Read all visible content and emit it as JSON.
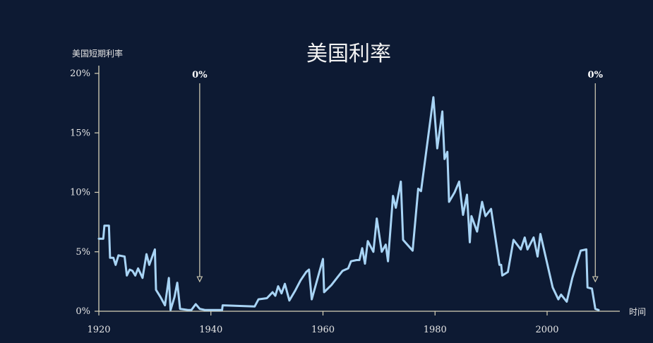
{
  "chart_data": {
    "type": "line",
    "title": "美国利率",
    "ylabel": "美国短期利率",
    "xlabel": "时间",
    "xlim": [
      1920,
      2010
    ],
    "ylim": [
      0,
      20
    ],
    "x_ticks": [
      1920,
      1940,
      1960,
      1980,
      2000
    ],
    "y_ticks": [
      {
        "value": 0,
        "label": "0%"
      },
      {
        "value": 5,
        "label": "5%"
      },
      {
        "value": 10,
        "label": "10%"
      },
      {
        "value": 15,
        "label": "15%"
      },
      {
        "value": 20,
        "label": "20%"
      }
    ],
    "grid": false,
    "annotations": [
      {
        "x": 1938,
        "label": "0%"
      },
      {
        "x": 2008.6,
        "label": "0%"
      }
    ],
    "series": [
      {
        "color": "#a8d4f5",
        "points": [
          [
            1920,
            6.1
          ],
          [
            1920.8,
            6.1
          ],
          [
            1921,
            7.2
          ],
          [
            1921.8,
            7.2
          ],
          [
            1922,
            4.5
          ],
          [
            1922.6,
            4.5
          ],
          [
            1923,
            3.9
          ],
          [
            1923.5,
            4.7
          ],
          [
            1924.6,
            4.6
          ],
          [
            1925,
            3.0
          ],
          [
            1925.5,
            3.5
          ],
          [
            1926,
            3.4
          ],
          [
            1926.5,
            3.0
          ],
          [
            1927,
            3.6
          ],
          [
            1927.8,
            2.8
          ],
          [
            1928.5,
            4.8
          ],
          [
            1929,
            3.9
          ],
          [
            1930,
            5.2
          ],
          [
            1930.2,
            1.8
          ],
          [
            1931,
            1.2
          ],
          [
            1931.8,
            0.5
          ],
          [
            1932.5,
            2.8
          ],
          [
            1932.8,
            0.1
          ],
          [
            1933.5,
            1.2
          ],
          [
            1934,
            2.4
          ],
          [
            1934.5,
            0.2
          ],
          [
            1936,
            0.1
          ],
          [
            1936.5,
            0.1
          ],
          [
            1937.3,
            0.6
          ],
          [
            1938,
            0.2
          ],
          [
            1939,
            0.1
          ],
          [
            1942,
            0.1
          ],
          [
            1942.1,
            0.5
          ],
          [
            1947.8,
            0.4
          ],
          [
            1948.5,
            1.0
          ],
          [
            1950,
            1.1
          ],
          [
            1951,
            1.6
          ],
          [
            1951.5,
            1.3
          ],
          [
            1952,
            2.1
          ],
          [
            1952.6,
            1.5
          ],
          [
            1953.2,
            2.3
          ],
          [
            1954,
            0.9
          ],
          [
            1955,
            1.7
          ],
          [
            1956,
            2.6
          ],
          [
            1957,
            3.3
          ],
          [
            1957.5,
            3.5
          ],
          [
            1958,
            1.0
          ],
          [
            1959,
            2.7
          ],
          [
            1960,
            4.4
          ],
          [
            1960.2,
            1.6
          ],
          [
            1961.5,
            2.2
          ],
          [
            1962.5,
            2.8
          ],
          [
            1963.5,
            3.4
          ],
          [
            1964.5,
            3.6
          ],
          [
            1965,
            4.2
          ],
          [
            1966,
            4.3
          ],
          [
            1966.5,
            4.3
          ],
          [
            1967,
            5.3
          ],
          [
            1967.5,
            4.0
          ],
          [
            1968,
            5.9
          ],
          [
            1969,
            5.0
          ],
          [
            1969.6,
            7.8
          ],
          [
            1970.5,
            5.0
          ],
          [
            1971.2,
            5.6
          ],
          [
            1971.6,
            4.2
          ],
          [
            1972.5,
            9.7
          ],
          [
            1973,
            8.7
          ],
          [
            1973.9,
            10.9
          ],
          [
            1974.3,
            6.0
          ],
          [
            1976,
            5.1
          ],
          [
            1977,
            10.3
          ],
          [
            1977.5,
            10.1
          ],
          [
            1979.7,
            18.0
          ],
          [
            1980.4,
            13.7
          ],
          [
            1981.3,
            16.8
          ],
          [
            1981.7,
            12.8
          ],
          [
            1982.2,
            13.4
          ],
          [
            1982.5,
            9.2
          ],
          [
            1983.5,
            10.0
          ],
          [
            1984.3,
            10.9
          ],
          [
            1985,
            8.1
          ],
          [
            1985.7,
            9.8
          ],
          [
            1986.2,
            5.8
          ],
          [
            1986.5,
            8.0
          ],
          [
            1987.5,
            6.7
          ],
          [
            1988.4,
            9.2
          ],
          [
            1989,
            8.0
          ],
          [
            1990,
            8.6
          ],
          [
            1991.5,
            3.9
          ],
          [
            1991.8,
            3.9
          ],
          [
            1992,
            3.0
          ],
          [
            1993,
            3.3
          ],
          [
            1994,
            6.0
          ],
          [
            1995.3,
            5.2
          ],
          [
            1996,
            6.2
          ],
          [
            1996.5,
            5.2
          ],
          [
            1997.6,
            6.2
          ],
          [
            1998.3,
            4.6
          ],
          [
            1998.8,
            6.5
          ],
          [
            2001,
            2.0
          ],
          [
            2002,
            1.0
          ],
          [
            2002.5,
            1.4
          ],
          [
            2003.5,
            0.8
          ],
          [
            2004.5,
            2.8
          ],
          [
            2006,
            5.1
          ],
          [
            2007,
            5.2
          ],
          [
            2007.2,
            2.0
          ],
          [
            2008,
            1.9
          ],
          [
            2008.6,
            0.2
          ],
          [
            2009.2,
            0.1
          ]
        ]
      }
    ]
  }
}
